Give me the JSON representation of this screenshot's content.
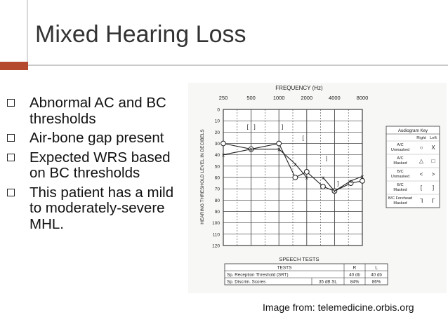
{
  "slide": {
    "title": "Mixed Hearing Loss",
    "bullets": [
      "Abnormal AC and BC thresholds",
      "Air-bone gap present",
      "Expected WRS based on BC thresholds",
      "This patient has a mild to moderately-severe MHL."
    ],
    "credit": "Image from: telemedicine.orbis.org",
    "accent_color": "#b5492e"
  },
  "chart_data": {
    "type": "line",
    "title": "FREQUENCY (Hz)",
    "ylabel": "HEARING THRESHOLD LEVEL IN DECIBELS",
    "x_ticks": [
      "250",
      "500",
      "1000",
      "2000",
      "4000",
      "8000"
    ],
    "y_ticks": [
      "0",
      "10",
      "20",
      "30",
      "40",
      "50",
      "60",
      "70",
      "80",
      "90",
      "100",
      "110",
      "120"
    ],
    "ylim": [
      0,
      120
    ],
    "y_inverted": true,
    "grid": true,
    "series": [
      {
        "symbol": "O",
        "x": [
          250,
          500,
          1000,
          1500,
          2000,
          3000,
          4000,
          6000,
          8000
        ],
        "y": [
          30,
          35,
          30,
          60,
          55,
          68,
          72,
          65,
          63
        ]
      },
      {
        "symbol": "X",
        "x": [
          250,
          500,
          1000,
          1500,
          2000,
          3000,
          4000,
          6000,
          8000
        ],
        "y": [
          40,
          35,
          35,
          48,
          60,
          60,
          72,
          63,
          59
        ]
      }
    ],
    "bc_markers": [
      {
        "symbol": "[",
        "x": 500,
        "y": 15
      },
      {
        "symbol": "]",
        "x": 500,
        "y": 15
      },
      {
        "symbol": "]",
        "x": 1000,
        "y": 15
      },
      {
        "symbol": "[",
        "x": 2000,
        "y": 25
      },
      {
        "symbol": "]",
        "x": 3000,
        "y": 43
      },
      {
        "symbol": "]",
        "x": 4000,
        "y": 65
      }
    ],
    "legend": {
      "title": "Audiogram Key",
      "headers": [
        "Right",
        "Left"
      ],
      "rows": [
        {
          "label": "A/C Unmasked",
          "right": "○",
          "left": "X"
        },
        {
          "label": "A/C Masked",
          "right": "△",
          "left": "□"
        },
        {
          "label": "B/C Unmasked",
          "right": "<",
          "left": ">"
        },
        {
          "label": "B/C Masked",
          "right": "[",
          "left": "]"
        },
        {
          "label": "B/C Forehead Masked",
          "right": "ᒣ",
          "left": "ᒥ"
        }
      ]
    },
    "speech_tests": {
      "title": "SPEECH TESTS",
      "headers": [
        "TESTS",
        "R",
        "L"
      ],
      "rows": [
        {
          "test": "Sp. Reception Threshold (SRT)",
          "extra": "",
          "r": "40 db",
          "l": "40 db"
        },
        {
          "test": "Sp. Discrim. Scores",
          "extra": "35 dB SL",
          "r": "84%",
          "l": "86%"
        }
      ]
    }
  }
}
